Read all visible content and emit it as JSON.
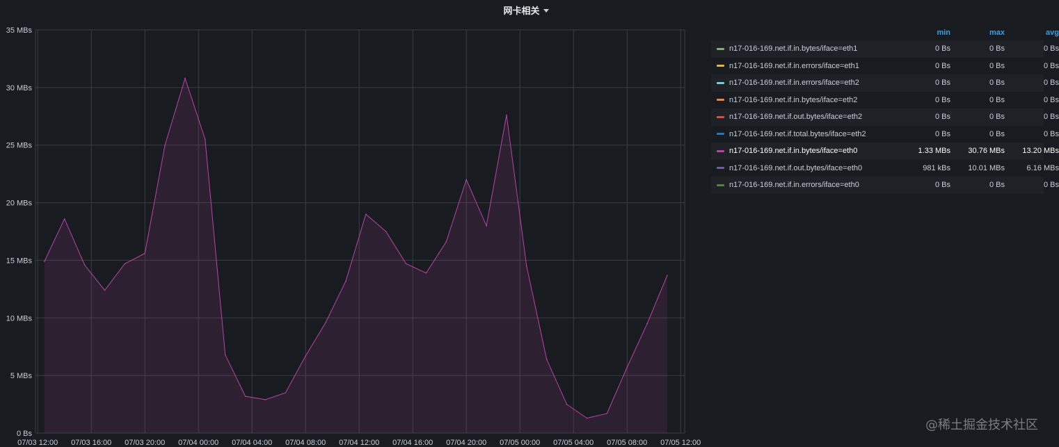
{
  "panel": {
    "title": "网卡相关",
    "caret_icon": "caret-down-icon"
  },
  "legend": {
    "headers": {
      "min": "min",
      "max": "max",
      "avg": "avg"
    },
    "items": [
      {
        "name": "n17-016-169.net.if.in.bytes/iface=eth1",
        "color": "#7eb26d",
        "min": "0 Bs",
        "max": "0 Bs",
        "avg": "0 Bs"
      },
      {
        "name": "n17-016-169.net.if.in.errors/iface=eth1",
        "color": "#eab839",
        "min": "0 Bs",
        "max": "0 Bs",
        "avg": "0 Bs"
      },
      {
        "name": "n17-016-169.net.if.in.errors/iface=eth2",
        "color": "#6ed0e0",
        "min": "0 Bs",
        "max": "0 Bs",
        "avg": "0 Bs"
      },
      {
        "name": "n17-016-169.net.if.in.bytes/iface=eth2",
        "color": "#ef843c",
        "min": "0 Bs",
        "max": "0 Bs",
        "avg": "0 Bs"
      },
      {
        "name": "n17-016-169.net.if.out.bytes/iface=eth2",
        "color": "#e24d42",
        "min": "0 Bs",
        "max": "0 Bs",
        "avg": "0 Bs"
      },
      {
        "name": "n17-016-169.net.if.total.bytes/iface=eth2",
        "color": "#1f78c1",
        "min": "0 Bs",
        "max": "0 Bs",
        "avg": "0 Bs"
      },
      {
        "name": "n17-016-169.net.if.in.bytes/iface=eth0",
        "color": "#ba43a9",
        "min": "1.33 MBs",
        "max": "30.76 MBs",
        "avg": "13.20 MBs",
        "highlight": true
      },
      {
        "name": "n17-016-169.net.if.out.bytes/iface=eth0",
        "color": "#705da0",
        "min": "981 kBs",
        "max": "10.01 MBs",
        "avg": "6.16 MBs"
      },
      {
        "name": "n17-016-169.net.if.in.errors/iface=eth0",
        "color": "#508642",
        "min": "0 Bs",
        "max": "0 Bs",
        "avg": "0 Bs"
      }
    ]
  },
  "watermark": "@稀土掘金技术社区",
  "chart_data": {
    "type": "area",
    "title": "网卡相关",
    "ylim": [
      0,
      35
    ],
    "y_ticks": [
      0,
      5,
      10,
      15,
      20,
      25,
      30,
      35
    ],
    "y_tick_labels": [
      "0 Bs",
      "5 MBs",
      "10 MBs",
      "15 MBs",
      "20 MBs",
      "25 MBs",
      "30 MBs",
      "35 MBs"
    ],
    "x_range": [
      "07/03 12:00",
      "07/05 12:00"
    ],
    "x_tick_labels": [
      "07/03 12:00",
      "07/03 16:00",
      "07/03 20:00",
      "07/04 00:00",
      "07/04 04:00",
      "07/04 08:00",
      "07/04 12:00",
      "07/04 16:00",
      "07/04 20:00",
      "07/05 00:00",
      "07/05 04:00",
      "07/05 08:00",
      "07/05 12:00"
    ],
    "grid": true,
    "legend_placement": "right",
    "series": [
      {
        "name": "n17-016-169.net.if.in.bytes/iface=eth0",
        "color": "#ba43a9",
        "x": [
          "07/03 12:30",
          "07/03 14:00",
          "07/03 15:30",
          "07/03 17:00",
          "07/03 18:30",
          "07/03 20:00",
          "07/03 21:30",
          "07/03 23:00",
          "07/04 00:30",
          "07/04 02:00",
          "07/04 03:30",
          "07/04 05:00",
          "07/04 06:30",
          "07/04 08:00",
          "07/04 09:30",
          "07/04 11:00",
          "07/04 12:30",
          "07/04 14:00",
          "07/04 15:30",
          "07/04 17:00",
          "07/04 18:30",
          "07/04 20:00",
          "07/04 21:30",
          "07/04 23:00",
          "07/05 00:30",
          "07/05 02:00",
          "07/05 03:30",
          "07/05 05:00",
          "07/05 06:30",
          "07/05 08:00",
          "07/05 09:30",
          "07/05 11:00"
        ],
        "values": [
          14.9,
          18.6,
          14.6,
          12.4,
          14.7,
          15.6,
          25.0,
          30.8,
          25.5,
          6.8,
          3.2,
          2.9,
          3.5,
          6.7,
          9.6,
          13.2,
          19.0,
          17.5,
          14.7,
          13.9,
          16.6,
          22.0,
          18.0,
          27.6,
          14.5,
          6.4,
          2.5,
          1.3,
          1.7,
          5.7,
          9.5,
          13.7
        ]
      }
    ]
  }
}
